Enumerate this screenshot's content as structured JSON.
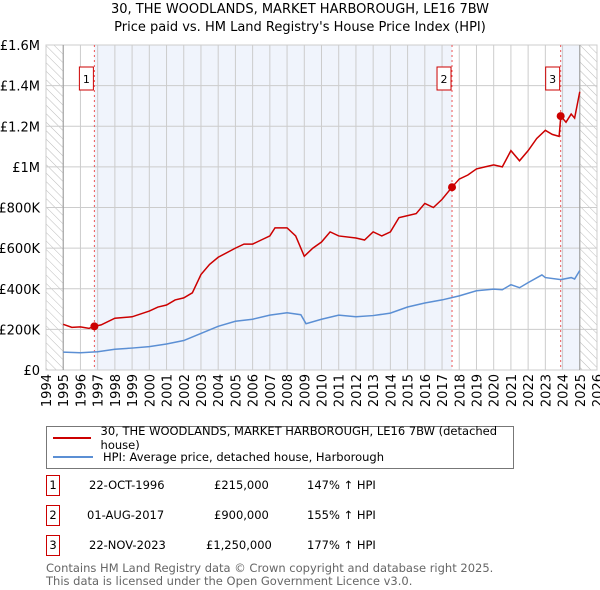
{
  "chart_data": {
    "type": "line",
    "title": "30, THE WOODLANDS, MARKET HARBOROUGH, LE16 7BW",
    "subtitle": "Price paid vs. HM Land Registry's House Price Index (HPI)",
    "xlim": [
      1994,
      2026
    ],
    "ylim": [
      0,
      1600000
    ],
    "yticks": [
      {
        "v": 0,
        "label": "£0"
      },
      {
        "v": 200000,
        "label": "£200K"
      },
      {
        "v": 400000,
        "label": "£400K"
      },
      {
        "v": 600000,
        "label": "£600K"
      },
      {
        "v": 800000,
        "label": "£800K"
      },
      {
        "v": 1000000,
        "label": "£1M"
      },
      {
        "v": 1200000,
        "label": "£1.2M"
      },
      {
        "v": 1400000,
        "label": "£1.4M"
      },
      {
        "v": 1600000,
        "label": "£1.6M"
      }
    ],
    "xticks": [
      "1994",
      "1995",
      "1996",
      "1997",
      "1998",
      "1999",
      "2000",
      "2001",
      "2002",
      "2003",
      "2004",
      "2005",
      "2006",
      "2007",
      "2008",
      "2009",
      "2010",
      "2011",
      "2012",
      "2013",
      "2014",
      "2015",
      "2016",
      "2017",
      "2018",
      "2019",
      "2020",
      "2021",
      "2022",
      "2023",
      "2024",
      "2025",
      "2026"
    ],
    "series": [
      {
        "name": "30, THE WOODLANDS, MARKET HARBOROUGH, LE16 7BW (detached house)",
        "color": "#cc0000",
        "points": [
          [
            1995,
            225000
          ],
          [
            1995.5,
            210000
          ],
          [
            1996,
            212000
          ],
          [
            1996.5,
            205000
          ],
          [
            1996.8,
            215000
          ],
          [
            1997.2,
            222000
          ],
          [
            1998,
            255000
          ],
          [
            1999,
            262000
          ],
          [
            2000,
            290000
          ],
          [
            2000.5,
            310000
          ],
          [
            2001,
            320000
          ],
          [
            2001.5,
            345000
          ],
          [
            2002,
            355000
          ],
          [
            2002.5,
            380000
          ],
          [
            2003,
            470000
          ],
          [
            2003.5,
            520000
          ],
          [
            2004,
            555000
          ],
          [
            2005,
            600000
          ],
          [
            2005.5,
            620000
          ],
          [
            2006,
            620000
          ],
          [
            2006.5,
            640000
          ],
          [
            2007,
            660000
          ],
          [
            2007.3,
            700000
          ],
          [
            2008,
            700000
          ],
          [
            2008.5,
            660000
          ],
          [
            2009,
            560000
          ],
          [
            2009.5,
            600000
          ],
          [
            2010,
            630000
          ],
          [
            2010.5,
            680000
          ],
          [
            2011,
            660000
          ],
          [
            2012,
            650000
          ],
          [
            2012.5,
            640000
          ],
          [
            2013,
            680000
          ],
          [
            2013.5,
            660000
          ],
          [
            2014,
            680000
          ],
          [
            2014.5,
            750000
          ],
          [
            2015,
            760000
          ],
          [
            2015.5,
            770000
          ],
          [
            2016,
            820000
          ],
          [
            2016.5,
            800000
          ],
          [
            2017,
            840000
          ],
          [
            2017.58,
            900000
          ],
          [
            2018,
            940000
          ],
          [
            2018.5,
            960000
          ],
          [
            2019,
            990000
          ],
          [
            2019.5,
            1000000
          ],
          [
            2020,
            1010000
          ],
          [
            2020.5,
            1000000
          ],
          [
            2021,
            1080000
          ],
          [
            2021.5,
            1030000
          ],
          [
            2022,
            1080000
          ],
          [
            2022.5,
            1140000
          ],
          [
            2023,
            1180000
          ],
          [
            2023.4,
            1160000
          ],
          [
            2023.8,
            1150000
          ],
          [
            2023.9,
            1250000
          ],
          [
            2024.2,
            1220000
          ],
          [
            2024.5,
            1260000
          ],
          [
            2024.7,
            1240000
          ],
          [
            2025,
            1370000
          ]
        ]
      },
      {
        "name": "HPI: Average price, detached house, Harborough",
        "color": "#5b8fd4",
        "points": [
          [
            1995,
            88000
          ],
          [
            1996,
            85000
          ],
          [
            1997,
            90000
          ],
          [
            1998,
            102000
          ],
          [
            1999,
            108000
          ],
          [
            2000,
            115000
          ],
          [
            2001,
            128000
          ],
          [
            2002,
            145000
          ],
          [
            2003,
            180000
          ],
          [
            2004,
            215000
          ],
          [
            2005,
            240000
          ],
          [
            2006,
            250000
          ],
          [
            2007,
            270000
          ],
          [
            2008,
            282000
          ],
          [
            2008.8,
            272000
          ],
          [
            2009.1,
            228000
          ],
          [
            2010,
            250000
          ],
          [
            2011,
            270000
          ],
          [
            2012,
            262000
          ],
          [
            2013,
            268000
          ],
          [
            2014,
            280000
          ],
          [
            2015,
            310000
          ],
          [
            2016,
            330000
          ],
          [
            2017,
            345000
          ],
          [
            2018,
            365000
          ],
          [
            2019,
            390000
          ],
          [
            2020,
            398000
          ],
          [
            2020.5,
            395000
          ],
          [
            2021,
            420000
          ],
          [
            2021.5,
            405000
          ],
          [
            2022,
            430000
          ],
          [
            2022.8,
            468000
          ],
          [
            2023,
            455000
          ],
          [
            2023.9,
            445000
          ],
          [
            2024.5,
            455000
          ],
          [
            2024.7,
            448000
          ],
          [
            2025,
            490000
          ]
        ]
      }
    ],
    "sales": [
      {
        "label": "1",
        "date": "22-OCT-1996",
        "x": 1996.81,
        "price": "£215,000",
        "value": 215000,
        "hpi": "147% ↑ HPI"
      },
      {
        "label": "2",
        "date": "01-AUG-2017",
        "x": 2017.58,
        "price": "£900,000",
        "value": 900000,
        "hpi": "155% ↑ HPI"
      },
      {
        "label": "3",
        "date": "22-NOV-2023",
        "x": 2023.89,
        "price": "£1,250,000",
        "value": 1250000,
        "hpi": "177% ↑ HPI"
      }
    ],
    "data_range": [
      1995,
      2025
    ]
  },
  "footer": [
    "Contains HM Land Registry data © Crown copyright and database right 2025.",
    "This data is licensed under the Open Government Licence v3.0."
  ]
}
